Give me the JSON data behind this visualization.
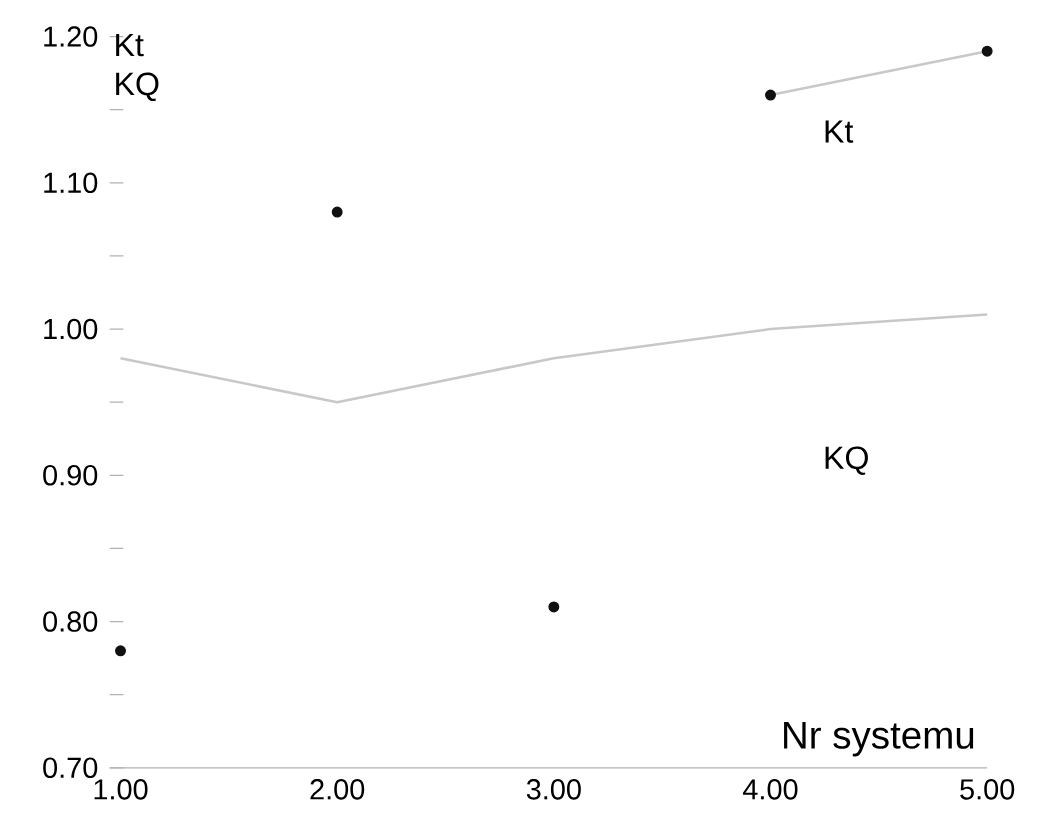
{
  "chart_data": {
    "type": "scatter",
    "xlabel": "Nr systemu",
    "x": [
      1,
      2,
      3,
      4,
      5
    ],
    "xlim": [
      0.95,
      5
    ],
    "xticks": [
      {
        "value": 1,
        "label": "1.00"
      },
      {
        "value": 2,
        "label": "2.00"
      },
      {
        "value": 3,
        "label": "3.00"
      },
      {
        "value": 4,
        "label": "4.00"
      },
      {
        "value": 5,
        "label": "5.00"
      }
    ],
    "ylim": [
      0.7,
      1.2
    ],
    "yticks": [
      {
        "value": 0.7,
        "label": "0.70"
      },
      {
        "value": 0.75,
        "label": null
      },
      {
        "value": 0.8,
        "label": "0.80"
      },
      {
        "value": 0.85,
        "label": null
      },
      {
        "value": 0.9,
        "label": "0.90"
      },
      {
        "value": 0.95,
        "label": null
      },
      {
        "value": 1.0,
        "label": "1.00"
      },
      {
        "value": 1.05,
        "label": null
      },
      {
        "value": 1.1,
        "label": "1.10"
      },
      {
        "value": 1.15,
        "label": null
      },
      {
        "value": 1.2,
        "label": "1.20"
      }
    ],
    "series": [
      {
        "color": "#111111",
        "marker": "circle",
        "values": [
          0.78,
          1.08,
          0.81,
          1.16,
          1.19
        ]
      },
      {
        "type": "line",
        "color": "#c8c8c8",
        "marker": "none",
        "values": [
          null,
          null,
          null,
          1.16,
          1.19
        ]
      },
      {
        "type": "line",
        "color": "#c8c8c8",
        "marker": "none",
        "values": [
          0.98,
          0.95,
          0.98,
          1.0,
          1.01
        ]
      }
    ],
    "annotations": [
      "Kt",
      "KQ",
      "Kt",
      "KQ"
    ],
    "grid": false,
    "legend": false
  }
}
